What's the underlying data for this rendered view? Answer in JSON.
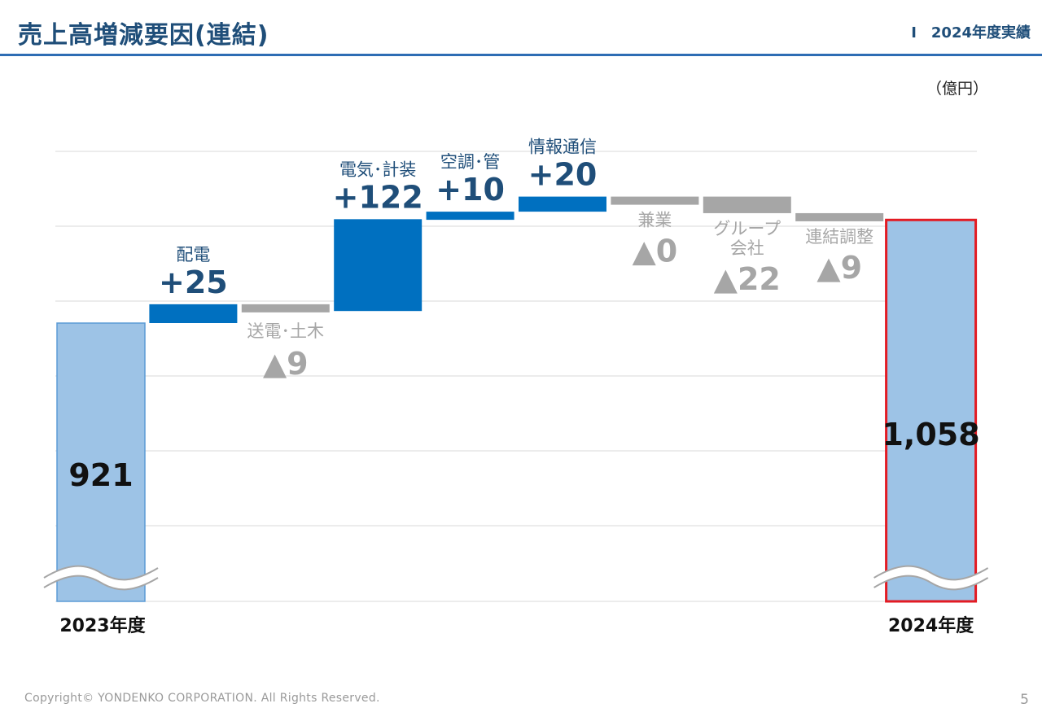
{
  "header": {
    "title": "売上高増減要因(連結)",
    "section": "Ⅰ　2024年度実績"
  },
  "unit_label": "（億円）",
  "chart_data": {
    "type": "bar",
    "subtype": "waterfall",
    "unit": "億円",
    "grid": true,
    "axis_break": true,
    "start": {
      "label": "2023年度",
      "value": 921,
      "value_label": "921"
    },
    "end": {
      "label": "2024年度",
      "value": 1058,
      "value_label": "1,058",
      "highlight": true
    },
    "steps": [
      {
        "name": "配電",
        "name_lines": [
          "配電"
        ],
        "delta": 25,
        "delta_label": "+25",
        "kind": "increase"
      },
      {
        "name": "送電・土木",
        "name_lines": [
          "送電･土木"
        ],
        "delta": -9,
        "delta_label": "▲9",
        "kind": "decrease"
      },
      {
        "name": "電気・計装",
        "name_lines": [
          "電気･計装"
        ],
        "delta": 122,
        "delta_label": "+122",
        "kind": "increase"
      },
      {
        "name": "空調・管",
        "name_lines": [
          "空調･管"
        ],
        "delta": 10,
        "delta_label": "+10",
        "kind": "increase"
      },
      {
        "name": "情報通信",
        "name_lines": [
          "情報通信"
        ],
        "delta": 20,
        "delta_label": "+20",
        "kind": "increase"
      },
      {
        "name": "兼業",
        "name_lines": [
          "兼業"
        ],
        "delta": 0,
        "delta_label": "▲0",
        "kind": "decrease"
      },
      {
        "name": "グループ会社",
        "name_lines": [
          "グループ",
          "会社"
        ],
        "delta": -22,
        "delta_label": "▲22",
        "kind": "decrease"
      },
      {
        "name": "連結調整",
        "name_lines": [
          "連結調整"
        ],
        "delta": -9,
        "delta_label": "▲9",
        "kind": "decrease"
      }
    ],
    "colors": {
      "increase": "#0070c0",
      "decrease": "#a6a6a6",
      "total": "#9dc3e6",
      "total_stroke": "#5b9bd5",
      "highlight_stroke": "#e31b23",
      "increase_text": "#1f4e79",
      "decrease_text": "#a6a6a6",
      "grid": "#d9d9d9"
    }
  },
  "footer": {
    "copyright": "Copyright© YONDENKO CORPORATION. All Rights Reserved.",
    "page_number": "5"
  }
}
